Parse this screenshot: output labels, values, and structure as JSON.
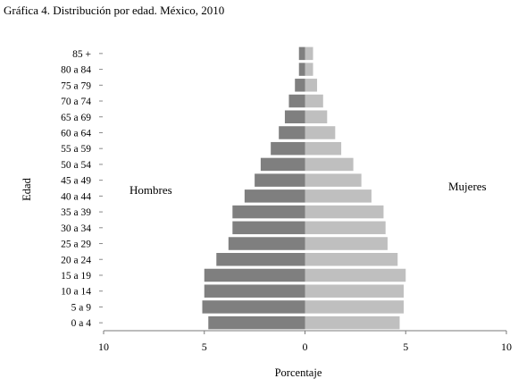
{
  "chart_data": {
    "type": "bar",
    "orientation": "horizontal-population-pyramid",
    "title": "Gráfica 4. Distribución por edad. México, 2010",
    "xlabel": "Porcentaje",
    "ylabel": "Edad",
    "categories": [
      "0 a 4",
      "5 a 9",
      "10 a 14",
      "15 a 19",
      "20 a 24",
      "25 a 29",
      "30 a 34",
      "35 a 39",
      "40 a 44",
      "45 a 49",
      "50 a 54",
      "55 a 59",
      "60 a 64",
      "65 a 69",
      "70 a 74",
      "75 a 79",
      "80 a 84",
      "85 +"
    ],
    "series": [
      {
        "name": "Hombres",
        "side": "left",
        "color": "#7f7f7f",
        "values": [
          4.8,
          5.1,
          5.0,
          5.0,
          4.4,
          3.8,
          3.6,
          3.6,
          3.0,
          2.5,
          2.2,
          1.7,
          1.3,
          1.0,
          0.8,
          0.5,
          0.3,
          0.3
        ]
      },
      {
        "name": "Mujeres",
        "side": "right",
        "color": "#bfbfbf",
        "values": [
          4.7,
          4.9,
          4.9,
          5.0,
          4.6,
          4.1,
          4.0,
          3.9,
          3.3,
          2.8,
          2.4,
          1.8,
          1.5,
          1.1,
          0.9,
          0.6,
          0.4,
          0.4
        ]
      }
    ],
    "xticks": [
      "10",
      "5",
      "0",
      "5",
      "10"
    ],
    "xlim": [
      -10,
      10
    ],
    "grid": false,
    "legend": "inline labels left and right"
  }
}
